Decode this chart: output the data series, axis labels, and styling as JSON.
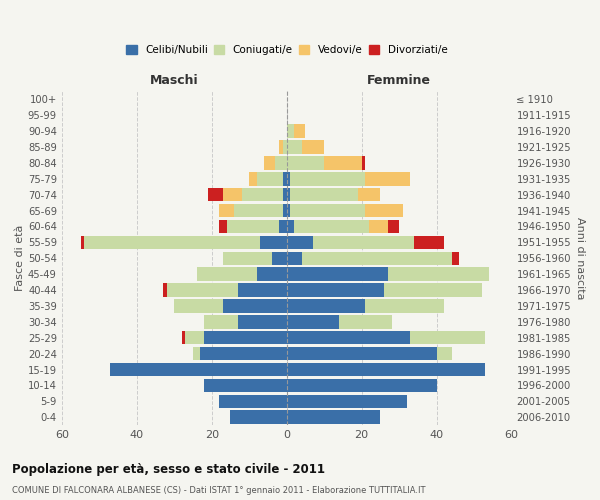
{
  "age_groups": [
    "0-4",
    "5-9",
    "10-14",
    "15-19",
    "20-24",
    "25-29",
    "30-34",
    "35-39",
    "40-44",
    "45-49",
    "50-54",
    "55-59",
    "60-64",
    "65-69",
    "70-74",
    "75-79",
    "80-84",
    "85-89",
    "90-94",
    "95-99",
    "100+"
  ],
  "birth_years": [
    "2006-2010",
    "2001-2005",
    "1996-2000",
    "1991-1995",
    "1986-1990",
    "1981-1985",
    "1976-1980",
    "1971-1975",
    "1966-1970",
    "1961-1965",
    "1956-1960",
    "1951-1955",
    "1946-1950",
    "1941-1945",
    "1936-1940",
    "1931-1935",
    "1926-1930",
    "1921-1925",
    "1916-1920",
    "1911-1915",
    "≤ 1910"
  ],
  "male": {
    "celibi": [
      15,
      18,
      22,
      47,
      23,
      22,
      13,
      17,
      13,
      8,
      4,
      7,
      2,
      1,
      1,
      1,
      0,
      0,
      0,
      0,
      0
    ],
    "coniugati": [
      0,
      0,
      0,
      0,
      2,
      5,
      9,
      13,
      19,
      16,
      13,
      47,
      14,
      13,
      11,
      7,
      3,
      1,
      0,
      0,
      0
    ],
    "vedovi": [
      0,
      0,
      0,
      0,
      0,
      0,
      0,
      0,
      0,
      0,
      0,
      0,
      0,
      4,
      5,
      2,
      3,
      1,
      0,
      0,
      0
    ],
    "divorziati": [
      0,
      0,
      0,
      0,
      0,
      1,
      0,
      0,
      1,
      0,
      0,
      1,
      2,
      0,
      4,
      0,
      0,
      0,
      0,
      0,
      0
    ]
  },
  "female": {
    "nubili": [
      25,
      32,
      40,
      53,
      40,
      33,
      14,
      21,
      26,
      27,
      4,
      7,
      2,
      1,
      1,
      1,
      0,
      0,
      0,
      0,
      0
    ],
    "coniugate": [
      0,
      0,
      0,
      0,
      4,
      20,
      14,
      21,
      26,
      27,
      40,
      27,
      20,
      20,
      18,
      20,
      10,
      4,
      2,
      0,
      0
    ],
    "vedove": [
      0,
      0,
      0,
      0,
      0,
      0,
      0,
      0,
      0,
      0,
      0,
      0,
      5,
      10,
      6,
      12,
      10,
      6,
      3,
      0,
      0
    ],
    "divorziate": [
      0,
      0,
      0,
      0,
      0,
      0,
      0,
      0,
      0,
      0,
      2,
      8,
      3,
      0,
      0,
      0,
      1,
      0,
      0,
      0,
      0
    ]
  },
  "colors": {
    "celibi": "#3a6fa8",
    "coniugati": "#c8dba4",
    "vedovi": "#f5c469",
    "divorziati": "#cc2020"
  },
  "title": "Popolazione per età, sesso e stato civile - 2011",
  "subtitle": "COMUNE DI FALCONARA ALBANESE (CS) - Dati ISTAT 1° gennaio 2011 - Elaborazione TUTTITALIA.IT",
  "xlabel_left": "Maschi",
  "xlabel_right": "Femmine",
  "ylabel_left": "Fasce di età",
  "ylabel_right": "Anni di nascita",
  "xlim": 60,
  "bg_color": "#f5f5f0",
  "bar_height": 0.85
}
